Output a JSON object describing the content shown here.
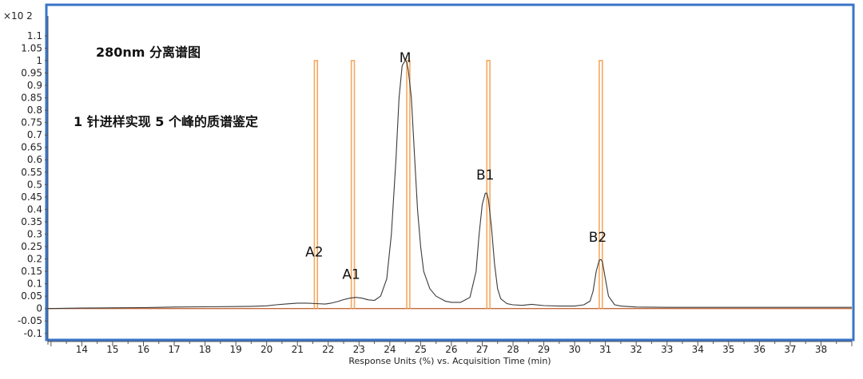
{
  "chart_data": {
    "type": "line",
    "title": "",
    "xlabel": "Response Units (%) vs. Acquisition Time (min)",
    "ylabel": "",
    "y_multiplier": "×10 2",
    "xlim": [
      12.9,
      39.0
    ],
    "ylim": [
      -0.12,
      1.18
    ],
    "x_ticks": [
      "14",
      "15",
      "16",
      "17",
      "18",
      "19",
      "20",
      "21",
      "22",
      "23",
      "24",
      "25",
      "26",
      "27",
      "28",
      "29",
      "30",
      "31",
      "32",
      "33",
      "34",
      "35",
      "36",
      "37",
      "38"
    ],
    "y_ticks": [
      "1.1",
      "1.05",
      "1",
      "0.95",
      "0.9",
      "0.85",
      "0.8",
      "0.75",
      "0.7",
      "0.65",
      "0.6",
      "0.55",
      "0.5",
      "0.45",
      "0.4",
      "0.35",
      "0.3",
      "0.25",
      "0.2",
      "0.15",
      "0.1",
      "0.05",
      "0",
      "-0.05",
      "-0.1"
    ],
    "annotations": [
      "280nm 分离谱图",
      "1 针进样实现 5 个峰的质谱鉴定"
    ],
    "peaks": [
      {
        "label": "A2",
        "time": 21.6,
        "label_y": 0.21
      },
      {
        "label": "A1",
        "time": 22.8,
        "label_y": 0.12
      },
      {
        "label": "M",
        "time": 24.55,
        "label_y": 1.0
      },
      {
        "label": "B1",
        "time": 27.15,
        "label_y": 0.52
      },
      {
        "label": "B2",
        "time": 30.8,
        "label_y": 0.27
      }
    ],
    "series": [
      {
        "color": "#3a3a3a",
        "x": [
          12.9,
          14,
          15,
          16,
          16.5,
          17,
          18,
          19,
          19.5,
          20,
          20.3,
          20.6,
          21,
          21.3,
          21.6,
          21.9,
          22.1,
          22.3,
          22.5,
          22.7,
          22.9,
          23.1,
          23.3,
          23.5,
          23.7,
          23.9,
          24.05,
          24.2,
          24.3,
          24.4,
          24.5,
          24.55,
          24.6,
          24.7,
          24.8,
          24.9,
          25.0,
          25.1,
          25.3,
          25.5,
          25.8,
          26.0,
          26.3,
          26.6,
          26.8,
          26.9,
          27.0,
          27.1,
          27.15,
          27.2,
          27.3,
          27.4,
          27.5,
          27.6,
          27.8,
          28.0,
          28.3,
          28.6,
          29.0,
          29.5,
          30.0,
          30.3,
          30.5,
          30.6,
          30.7,
          30.8,
          30.85,
          30.9,
          31.0,
          31.1,
          31.3,
          31.5,
          32,
          33,
          34,
          35,
          36,
          37,
          38,
          39
        ],
        "y": [
          0,
          0.002,
          0.003,
          0.004,
          0.005,
          0.006,
          0.007,
          0.008,
          0.009,
          0.011,
          0.015,
          0.018,
          0.022,
          0.022,
          0.02,
          0.018,
          0.022,
          0.028,
          0.036,
          0.042,
          0.045,
          0.042,
          0.035,
          0.033,
          0.05,
          0.12,
          0.3,
          0.6,
          0.85,
          0.98,
          1.0,
          0.995,
          0.96,
          0.85,
          0.62,
          0.4,
          0.25,
          0.15,
          0.08,
          0.05,
          0.03,
          0.025,
          0.025,
          0.045,
          0.15,
          0.3,
          0.42,
          0.465,
          0.465,
          0.44,
          0.33,
          0.18,
          0.08,
          0.04,
          0.02,
          0.015,
          0.013,
          0.017,
          0.012,
          0.01,
          0.01,
          0.015,
          0.03,
          0.07,
          0.15,
          0.195,
          0.198,
          0.19,
          0.12,
          0.05,
          0.015,
          0.01,
          0.006,
          0.005,
          0.005,
          0.005,
          0.005,
          0.005,
          0.005,
          0.005
        ]
      },
      {
        "color": "#f5a960",
        "style": "vertical-bars",
        "bars": [
          {
            "start": 21.55,
            "end": 21.65,
            "value": 1.0
          },
          {
            "start": 22.75,
            "end": 22.85,
            "value": 1.0
          },
          {
            "start": 24.55,
            "end": 24.65,
            "value": 1.0
          },
          {
            "start": 27.15,
            "end": 27.25,
            "value": 1.0
          },
          {
            "start": 30.8,
            "end": 30.9,
            "value": 1.0
          }
        ]
      },
      {
        "color": "#c56a3a",
        "style": "baseline",
        "x": [
          12.9,
          39.0
        ],
        "y": [
          0,
          0
        ]
      }
    ],
    "grid": false,
    "frame_color": "#3a74c8"
  }
}
